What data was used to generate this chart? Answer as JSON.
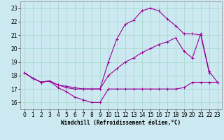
{
  "xlabel": "Windchill (Refroidissement éolien,°C)",
  "bg_color": "#cce8f0",
  "grid_color": "#a0d8c8",
  "line_color": "#990099",
  "xlim": [
    -0.5,
    23.5
  ],
  "ylim": [
    15.5,
    23.5
  ],
  "xticks": [
    0,
    1,
    2,
    3,
    4,
    5,
    6,
    7,
    8,
    9,
    10,
    11,
    12,
    13,
    14,
    15,
    16,
    17,
    18,
    19,
    20,
    21,
    22,
    23
  ],
  "yticks": [
    16,
    17,
    18,
    19,
    20,
    21,
    22,
    23
  ],
  "line1_x": [
    0,
    1,
    2,
    3,
    4,
    5,
    6,
    7,
    8,
    9,
    10,
    11,
    12,
    13,
    14,
    15,
    16,
    17,
    18,
    19,
    20,
    21,
    22,
    23
  ],
  "line1_y": [
    18.2,
    17.8,
    17.5,
    17.6,
    17.1,
    16.8,
    16.4,
    16.2,
    16.0,
    16.0,
    17.0,
    17.0,
    17.0,
    17.0,
    17.0,
    17.0,
    17.0,
    17.0,
    17.0,
    17.1,
    17.5,
    17.5,
    17.5,
    17.5
  ],
  "line2_x": [
    0,
    1,
    2,
    3,
    4,
    5,
    6,
    7,
    8,
    9,
    10,
    11,
    12,
    13,
    14,
    15,
    16,
    17,
    18,
    19,
    20,
    21,
    22,
    23
  ],
  "line2_y": [
    18.2,
    17.8,
    17.5,
    17.6,
    17.3,
    17.2,
    17.1,
    17.0,
    17.0,
    17.0,
    18.0,
    18.5,
    19.0,
    19.3,
    19.7,
    20.0,
    20.3,
    20.5,
    20.8,
    19.8,
    19.3,
    21.1,
    18.3,
    17.5
  ],
  "line3_x": [
    0,
    1,
    2,
    3,
    4,
    5,
    6,
    7,
    8,
    9,
    10,
    11,
    12,
    13,
    14,
    15,
    16,
    17,
    18,
    19,
    20,
    21,
    22
  ],
  "line3_y": [
    18.2,
    17.8,
    17.5,
    17.6,
    17.3,
    17.1,
    17.0,
    17.0,
    17.0,
    17.0,
    19.0,
    20.7,
    21.8,
    22.1,
    22.8,
    23.0,
    22.8,
    22.2,
    21.7,
    21.1,
    21.1,
    21.0,
    18.2
  ],
  "linewidth": 0.8,
  "markersize": 3.0,
  "tick_fontsize": 5.5,
  "xlabel_fontsize": 5.5
}
